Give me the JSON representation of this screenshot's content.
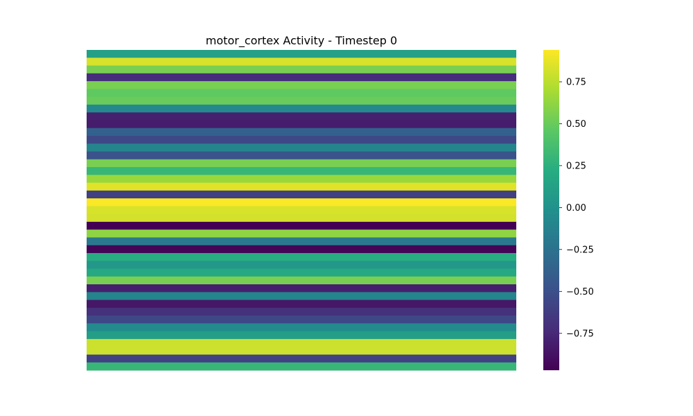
{
  "chart_data": {
    "type": "heatmap",
    "title": "motor_cortex Activity - Timestep 0",
    "xlabel": "",
    "ylabel": "",
    "axes_visible": false,
    "colormap": "viridis",
    "colorbar": {
      "vmin": -0.97,
      "vmax": 0.94,
      "ticks": [
        0.75,
        0.5,
        0.25,
        0.0,
        -0.25,
        -0.5,
        -0.75
      ],
      "tick_labels": [
        "0.75",
        "0.50",
        "0.25",
        "0.00",
        "−0.25",
        "−0.50",
        "−0.75"
      ]
    },
    "rows": [
      0.12,
      0.83,
      0.55,
      -0.72,
      0.55,
      0.47,
      0.5,
      -0.07,
      -0.8,
      -0.82,
      -0.37,
      -0.55,
      -0.1,
      -0.48,
      0.55,
      0.3,
      0.65,
      0.86,
      -0.6,
      0.93,
      0.83,
      0.82,
      -0.97,
      0.62,
      -0.2,
      -0.95,
      0.22,
      0.05,
      0.18,
      0.55,
      -0.8,
      -0.1,
      -0.85,
      -0.7,
      -0.55,
      -0.05,
      0.1,
      0.8,
      0.8,
      -0.6,
      0.3
    ]
  }
}
